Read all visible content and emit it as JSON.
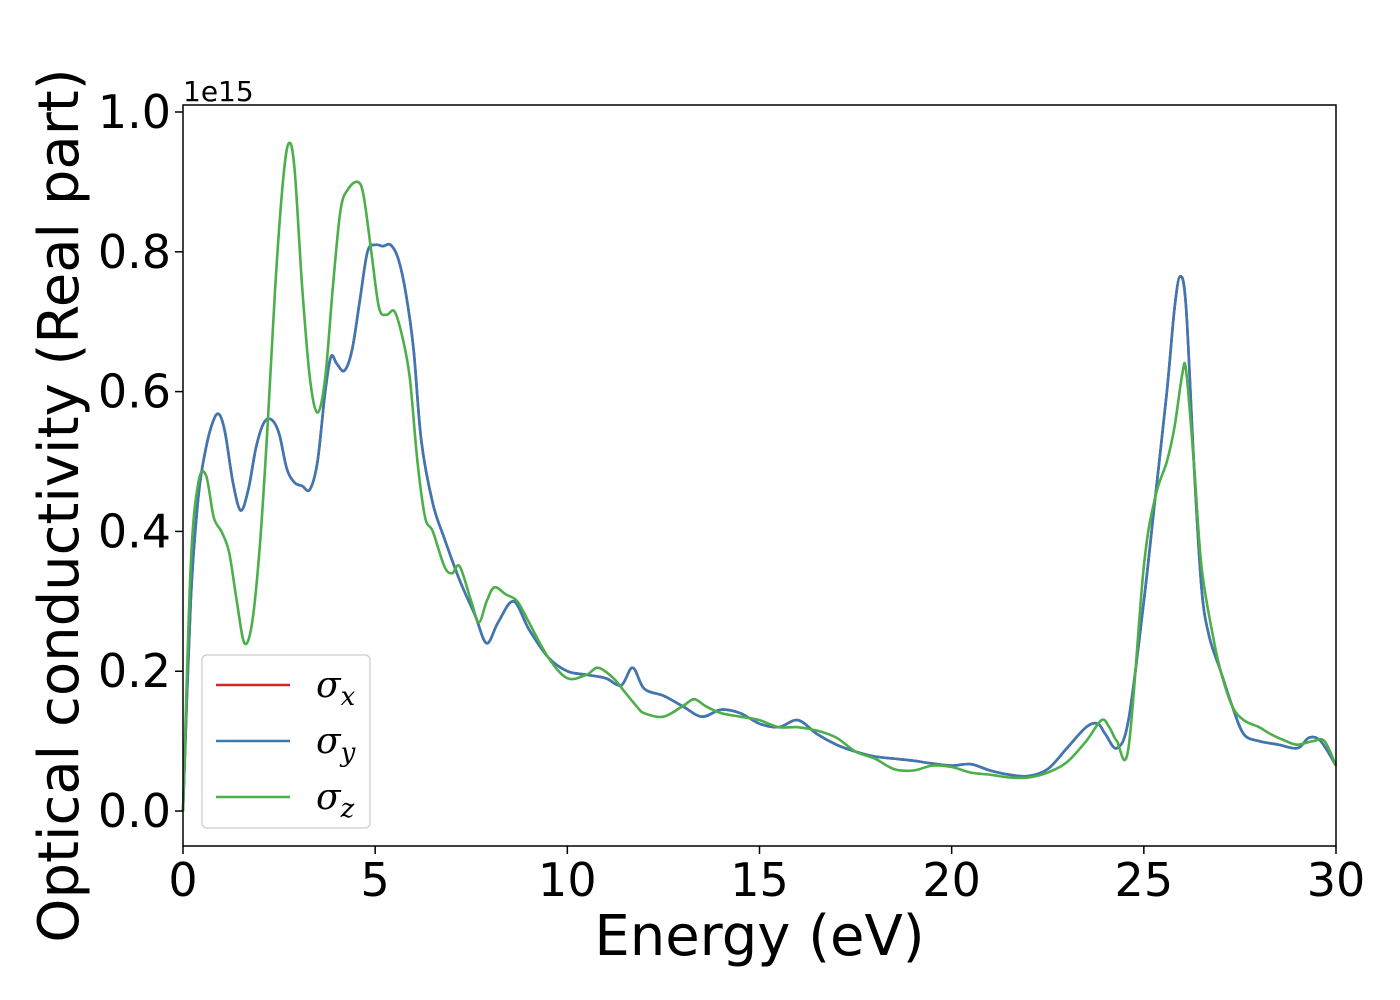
{
  "chart_data": {
    "type": "line",
    "title": "",
    "xlabel": "Energy (eV)",
    "ylabel": "Optical conductivity (Real part)",
    "y_offset_text": "1e15",
    "xlim": [
      0,
      30
    ],
    "ylim": [
      -0.05,
      1.01
    ],
    "xticks": [
      0,
      5,
      10,
      15,
      20,
      25,
      30
    ],
    "xtick_labels": [
      "0",
      "5",
      "10",
      "15",
      "20",
      "25",
      "30"
    ],
    "yticks": [
      0.0,
      0.2,
      0.4,
      0.6,
      0.8,
      1.0
    ],
    "ytick_labels": [
      "0.0",
      "0.2",
      "0.4",
      "0.6",
      "0.8",
      "1.0"
    ],
    "grid": false,
    "legend_position": "lower-left",
    "series": [
      {
        "name": "σx",
        "legend_symbol": "σ",
        "legend_subscript": "x",
        "color": "#d62728",
        "x": [
          0,
          0.2,
          0.4,
          0.6,
          0.8,
          0.95,
          1.1,
          1.3,
          1.5,
          1.7,
          1.9,
          2.1,
          2.3,
          2.5,
          2.7,
          2.9,
          3.1,
          3.3,
          3.5,
          3.7,
          3.85,
          4.0,
          4.2,
          4.4,
          4.6,
          4.8,
          5.0,
          5.2,
          5.4,
          5.6,
          5.8,
          6.0,
          6.2,
          6.5,
          6.8,
          7.2,
          7.6,
          7.9,
          8.2,
          8.6,
          9.0,
          9.5,
          10.0,
          10.5,
          11.0,
          11.4,
          11.7,
          12.0,
          12.5,
          13.0,
          13.5,
          14.0,
          14.5,
          15.0,
          15.5,
          16.0,
          16.5,
          17.0,
          17.5,
          18.0,
          18.5,
          19.0,
          19.5,
          20.0,
          20.5,
          21.0,
          21.5,
          22.0,
          22.5,
          23.0,
          23.5,
          23.8,
          24.0,
          24.3,
          24.6,
          25.0,
          25.3,
          25.6,
          25.8,
          25.95,
          26.1,
          26.3,
          26.5,
          26.7,
          27.0,
          27.3,
          27.6,
          28.0,
          28.5,
          29.0,
          29.3,
          29.6,
          30.0
        ],
        "y": [
          0.0,
          0.3,
          0.45,
          0.52,
          0.56,
          0.567,
          0.54,
          0.47,
          0.43,
          0.46,
          0.52,
          0.555,
          0.56,
          0.54,
          0.49,
          0.47,
          0.465,
          0.46,
          0.5,
          0.6,
          0.65,
          0.64,
          0.63,
          0.66,
          0.73,
          0.8,
          0.81,
          0.808,
          0.81,
          0.79,
          0.74,
          0.66,
          0.53,
          0.44,
          0.39,
          0.33,
          0.28,
          0.24,
          0.27,
          0.3,
          0.26,
          0.22,
          0.2,
          0.195,
          0.19,
          0.18,
          0.205,
          0.175,
          0.165,
          0.15,
          0.135,
          0.145,
          0.14,
          0.125,
          0.12,
          0.13,
          0.11,
          0.095,
          0.085,
          0.078,
          0.075,
          0.072,
          0.068,
          0.065,
          0.067,
          0.058,
          0.052,
          0.05,
          0.06,
          0.09,
          0.12,
          0.125,
          0.11,
          0.09,
          0.13,
          0.3,
          0.45,
          0.6,
          0.72,
          0.765,
          0.72,
          0.5,
          0.32,
          0.25,
          0.2,
          0.15,
          0.11,
          0.1,
          0.095,
          0.09,
          0.105,
          0.1,
          0.065
        ]
      },
      {
        "name": "σy",
        "legend_symbol": "σ",
        "legend_subscript": "y",
        "color": "#3c78b4",
        "x": [
          0,
          0.2,
          0.4,
          0.6,
          0.8,
          0.95,
          1.1,
          1.3,
          1.5,
          1.7,
          1.9,
          2.1,
          2.3,
          2.5,
          2.7,
          2.9,
          3.1,
          3.3,
          3.5,
          3.7,
          3.85,
          4.0,
          4.2,
          4.4,
          4.6,
          4.8,
          5.0,
          5.2,
          5.4,
          5.6,
          5.8,
          6.0,
          6.2,
          6.5,
          6.8,
          7.2,
          7.6,
          7.9,
          8.2,
          8.6,
          9.0,
          9.5,
          10.0,
          10.5,
          11.0,
          11.4,
          11.7,
          12.0,
          12.5,
          13.0,
          13.5,
          14.0,
          14.5,
          15.0,
          15.5,
          16.0,
          16.5,
          17.0,
          17.5,
          18.0,
          18.5,
          19.0,
          19.5,
          20.0,
          20.5,
          21.0,
          21.5,
          22.0,
          22.5,
          23.0,
          23.5,
          23.8,
          24.0,
          24.3,
          24.6,
          25.0,
          25.3,
          25.6,
          25.8,
          25.95,
          26.1,
          26.3,
          26.5,
          26.7,
          27.0,
          27.3,
          27.6,
          28.0,
          28.5,
          29.0,
          29.3,
          29.6,
          30.0
        ],
        "y": [
          0.0,
          0.3,
          0.45,
          0.52,
          0.56,
          0.567,
          0.54,
          0.47,
          0.43,
          0.46,
          0.52,
          0.555,
          0.56,
          0.54,
          0.49,
          0.47,
          0.465,
          0.46,
          0.5,
          0.6,
          0.65,
          0.64,
          0.63,
          0.66,
          0.73,
          0.8,
          0.81,
          0.808,
          0.81,
          0.79,
          0.74,
          0.66,
          0.53,
          0.44,
          0.39,
          0.33,
          0.28,
          0.24,
          0.27,
          0.3,
          0.26,
          0.22,
          0.2,
          0.195,
          0.19,
          0.18,
          0.205,
          0.175,
          0.165,
          0.15,
          0.135,
          0.145,
          0.14,
          0.125,
          0.12,
          0.13,
          0.11,
          0.095,
          0.085,
          0.078,
          0.075,
          0.072,
          0.068,
          0.065,
          0.067,
          0.058,
          0.052,
          0.05,
          0.06,
          0.09,
          0.12,
          0.125,
          0.11,
          0.09,
          0.13,
          0.3,
          0.45,
          0.6,
          0.72,
          0.765,
          0.72,
          0.5,
          0.32,
          0.25,
          0.2,
          0.15,
          0.11,
          0.1,
          0.095,
          0.09,
          0.105,
          0.1,
          0.065
        ]
      },
      {
        "name": "σz",
        "legend_symbol": "σ",
        "legend_subscript": "z",
        "color": "#4daf4a",
        "x": [
          0,
          0.2,
          0.4,
          0.6,
          0.8,
          1.0,
          1.2,
          1.4,
          1.6,
          1.8,
          2.0,
          2.2,
          2.4,
          2.6,
          2.75,
          2.9,
          3.1,
          3.3,
          3.5,
          3.7,
          3.9,
          4.1,
          4.3,
          4.55,
          4.7,
          4.9,
          5.1,
          5.3,
          5.5,
          5.7,
          5.9,
          6.1,
          6.3,
          6.5,
          6.8,
          7.0,
          7.2,
          7.5,
          7.7,
          7.9,
          8.1,
          8.4,
          8.7,
          9.0,
          9.5,
          10.0,
          10.5,
          10.8,
          11.2,
          11.5,
          11.8,
          12.0,
          12.5,
          13.0,
          13.3,
          13.6,
          14.0,
          14.5,
          15.0,
          15.5,
          16.0,
          16.5,
          17.0,
          17.5,
          18.0,
          18.5,
          19.0,
          19.5,
          20.0,
          20.5,
          21.0,
          21.5,
          22.0,
          22.5,
          23.0,
          23.5,
          23.9,
          24.1,
          24.3,
          24.6,
          25.0,
          25.3,
          25.6,
          25.8,
          26.0,
          26.1,
          26.3,
          26.5,
          26.8,
          27.0,
          27.3,
          27.6,
          28.0,
          28.3,
          28.7,
          29.0,
          29.4,
          29.7,
          30.0
        ],
        "y": [
          0.0,
          0.35,
          0.47,
          0.48,
          0.42,
          0.4,
          0.37,
          0.3,
          0.24,
          0.27,
          0.38,
          0.55,
          0.75,
          0.9,
          0.955,
          0.92,
          0.75,
          0.62,
          0.57,
          0.62,
          0.75,
          0.86,
          0.89,
          0.9,
          0.88,
          0.8,
          0.72,
          0.71,
          0.715,
          0.68,
          0.62,
          0.5,
          0.42,
          0.4,
          0.35,
          0.34,
          0.35,
          0.3,
          0.27,
          0.3,
          0.32,
          0.31,
          0.3,
          0.27,
          0.22,
          0.19,
          0.195,
          0.205,
          0.19,
          0.17,
          0.15,
          0.14,
          0.135,
          0.15,
          0.16,
          0.15,
          0.14,
          0.135,
          0.13,
          0.12,
          0.12,
          0.115,
          0.105,
          0.085,
          0.075,
          0.06,
          0.058,
          0.065,
          0.063,
          0.055,
          0.052,
          0.048,
          0.048,
          0.055,
          0.07,
          0.1,
          0.13,
          0.12,
          0.1,
          0.09,
          0.35,
          0.45,
          0.5,
          0.55,
          0.625,
          0.63,
          0.5,
          0.35,
          0.25,
          0.2,
          0.15,
          0.13,
          0.12,
          0.11,
          0.1,
          0.095,
          0.1,
          0.1,
          0.065
        ]
      }
    ]
  }
}
